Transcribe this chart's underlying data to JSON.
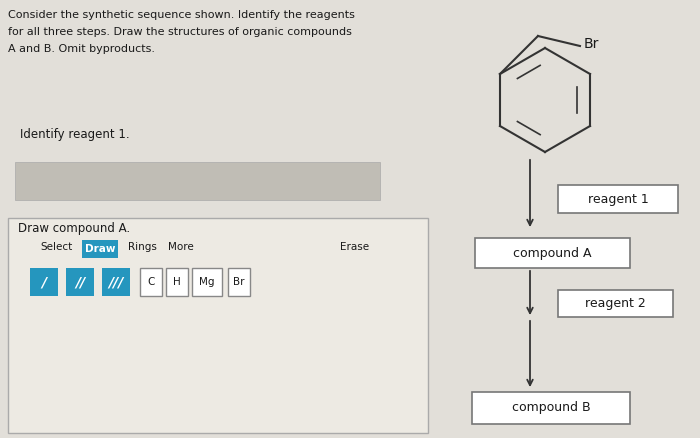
{
  "bg_color": "#cccac4",
  "page_bg": "#e2dfd9",
  "draw_panel_bg": "#edeae3",
  "input_box_color": "#c0bdb5",
  "teal_color": "#2596be",
  "box_border": "#888888",
  "text_color": "#1a1a1a",
  "title_text_line1": "Consider the synthetic sequence shown. Identify the reagents",
  "title_text_line2": "for all three steps. Draw the structures of organic compounds",
  "title_text_line3": "A and B. Omit byproducts.",
  "identify_label": "Identify reagent 1.",
  "draw_label": "Draw compound A.",
  "reagent1_label": "reagent 1",
  "reagent2_label": "reagent 2",
  "compoundA_label": "compound A",
  "compoundB_label": "compound B",
  "br_label": "Br",
  "toolbar_items": [
    "Select",
    "Draw",
    "Rings",
    "More",
    "Erase"
  ],
  "bond_symbols": [
    "/",
    "//",
    "///"
  ],
  "atom_buttons": [
    "C",
    "H",
    "Mg",
    "Br"
  ],
  "fig_width": 7.0,
  "fig_height": 4.38,
  "dpi": 100
}
